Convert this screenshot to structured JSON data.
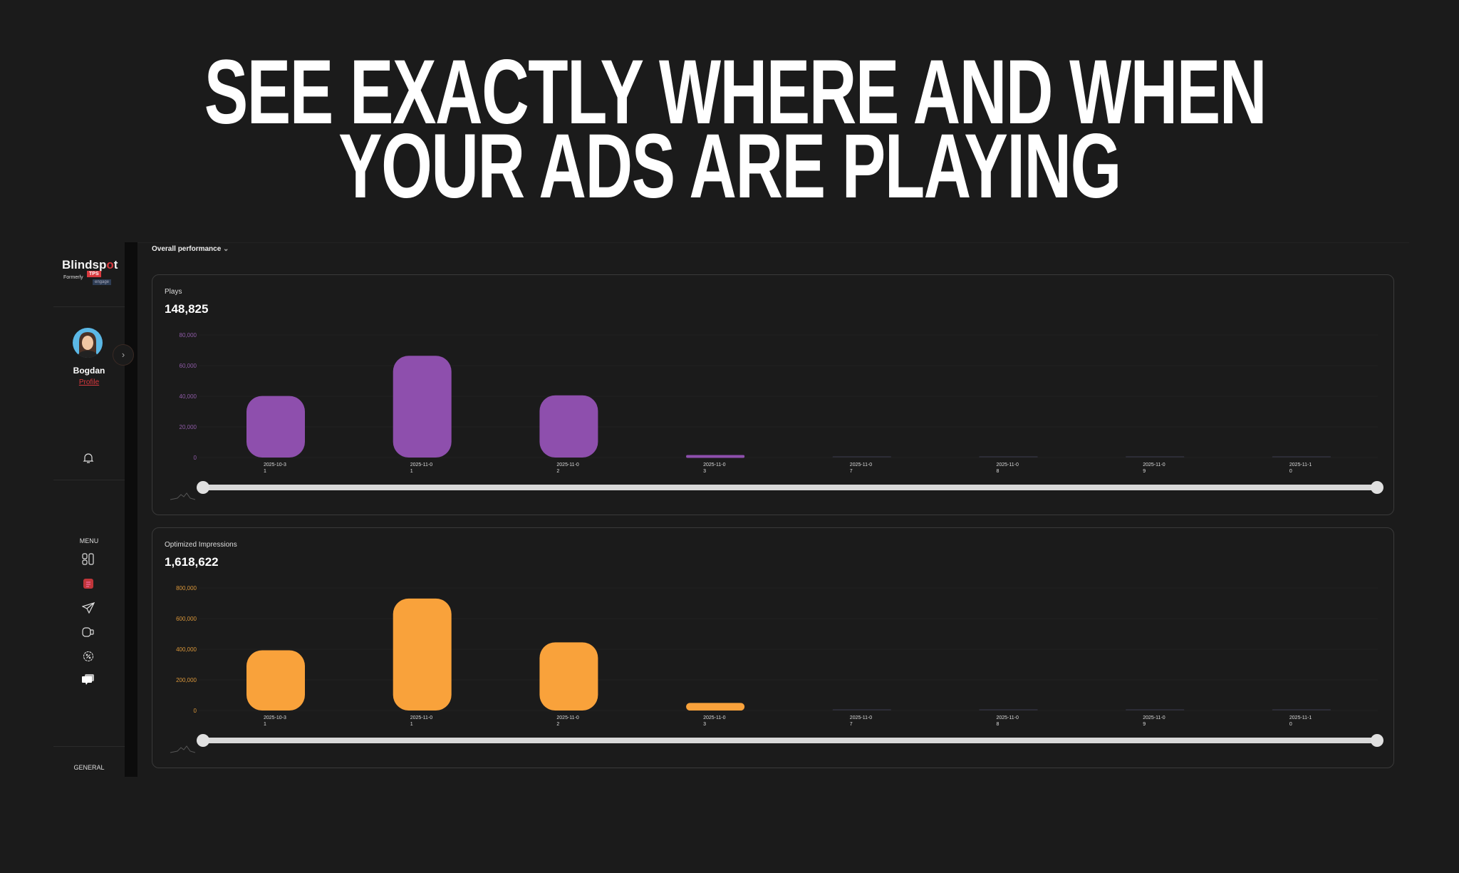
{
  "headline": {
    "line1": "SEE EXACTLY WHERE AND WHEN",
    "line2": "YOUR ADS ARE PLAYING"
  },
  "sidebar": {
    "logo": {
      "name_start": "Blindsp",
      "name_dot": "o",
      "name_end": "t",
      "formerly": "Formerly",
      "tps": "TPS",
      "engage": "engage"
    },
    "user": {
      "name": "Bogdan",
      "profile_link": "Profile"
    },
    "menu_label": "MENU",
    "general_label": "GENERAL",
    "items": [
      {
        "icon": "dashboard-icon",
        "active": false
      },
      {
        "icon": "report-icon",
        "active": true
      },
      {
        "icon": "send-icon",
        "active": false
      },
      {
        "icon": "video-camera-icon",
        "active": false
      },
      {
        "icon": "discount-badge-icon",
        "active": false
      },
      {
        "icon": "chat-icon",
        "active": false
      }
    ],
    "accent": "#d9393e"
  },
  "header": {
    "dropdown_label": "Overall performance"
  },
  "chart_data": [
    {
      "type": "bar",
      "title": "Plays",
      "total": "148,825",
      "color": "#8e4fad",
      "axis_color": "#8e5aa6",
      "categories": [
        "2025-10-31",
        "2025-11-01",
        "2025-11-02",
        "2025-11-03",
        "2025-11-07",
        "2025-11-08",
        "2025-11-09",
        "2025-11-10"
      ],
      "values": [
        40200,
        66400,
        40600,
        1625,
        0,
        0,
        0,
        0
      ],
      "yticks": [
        "0",
        "20,000",
        "40,000",
        "60,000",
        "80,000"
      ],
      "ylim": [
        0,
        80000
      ],
      "grid": true
    },
    {
      "type": "bar",
      "title": "Optimized Impressions",
      "total": "1,618,622",
      "color": "#f9a23b",
      "axis_color": "#d9963a",
      "categories": [
        "2025-10-31",
        "2025-11-01",
        "2025-11-02",
        "2025-11-03",
        "2025-11-07",
        "2025-11-08",
        "2025-11-09",
        "2025-11-10"
      ],
      "values": [
        393000,
        731000,
        445000,
        49622,
        0,
        0,
        0,
        0
      ],
      "yticks": [
        "0",
        "200,000",
        "400,000",
        "600,000",
        "800,000"
      ],
      "ylim": [
        0,
        800000
      ],
      "grid": true
    }
  ]
}
